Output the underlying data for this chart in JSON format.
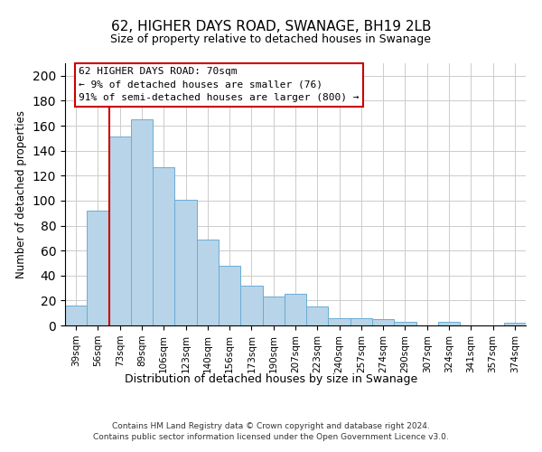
{
  "title": "62, HIGHER DAYS ROAD, SWANAGE, BH19 2LB",
  "subtitle": "Size of property relative to detached houses in Swanage",
  "xlabel": "Distribution of detached houses by size in Swanage",
  "ylabel": "Number of detached properties",
  "bin_labels": [
    "39sqm",
    "56sqm",
    "73sqm",
    "89sqm",
    "106sqm",
    "123sqm",
    "140sqm",
    "156sqm",
    "173sqm",
    "190sqm",
    "207sqm",
    "223sqm",
    "240sqm",
    "257sqm",
    "274sqm",
    "290sqm",
    "307sqm",
    "324sqm",
    "341sqm",
    "357sqm",
    "374sqm"
  ],
  "bar_heights": [
    16,
    92,
    151,
    165,
    127,
    101,
    69,
    48,
    32,
    23,
    25,
    15,
    6,
    6,
    5,
    3,
    0,
    3,
    0,
    0,
    2
  ],
  "bar_color": "#b8d4e8",
  "bar_edge_color": "#6aadd5",
  "vline_x": 2,
  "vline_color": "#cc0000",
  "ylim": [
    0,
    210
  ],
  "yticks": [
    0,
    20,
    40,
    60,
    80,
    100,
    120,
    140,
    160,
    180,
    200
  ],
  "annotation_title": "62 HIGHER DAYS ROAD: 70sqm",
  "annotation_line1": "← 9% of detached houses are smaller (76)",
  "annotation_line2": "91% of semi-detached houses are larger (800) →",
  "footer_line1": "Contains HM Land Registry data © Crown copyright and database right 2024.",
  "footer_line2": "Contains public sector information licensed under the Open Government Licence v3.0.",
  "background_color": "#ffffff",
  "grid_color": "#cccccc"
}
